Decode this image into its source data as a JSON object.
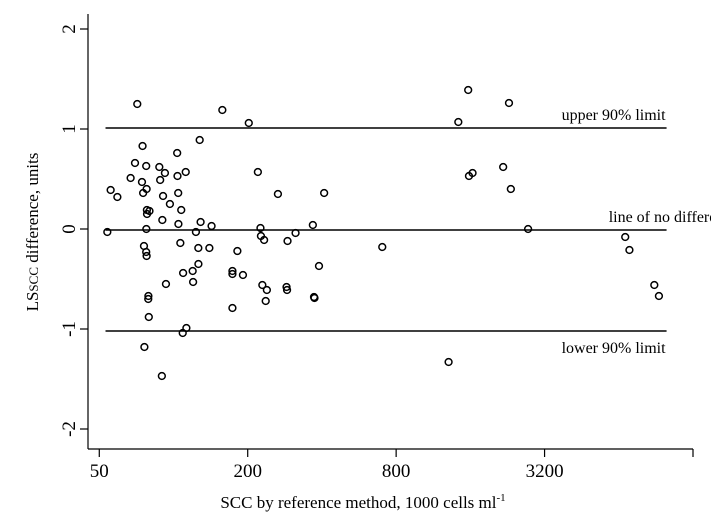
{
  "chart_data": {
    "type": "scatter",
    "title": "",
    "xlabel": "SCC by reference method, 1000 cells ml",
    "xlabel_superscript": "-1",
    "ylabel": "LS",
    "ylabel_subscript": "SCC",
    "ylabel_suffix": " difference, units",
    "x_scale": "log2",
    "xlim": [
      45,
      12800
    ],
    "ylim": [
      -2.2,
      2.15
    ],
    "x_ticks": [
      50,
      200,
      800,
      3200
    ],
    "x_ticklabels": [
      "50",
      "200",
      "800",
      "3200"
    ],
    "y_ticks": [
      -2,
      -1,
      0,
      1,
      2
    ],
    "y_ticklabels": [
      "-2",
      "-1",
      "0",
      "1",
      "2"
    ],
    "grid": false,
    "legend": "none",
    "reference_lines": [
      {
        "label": "upper 90% limit",
        "y": 1.01
      },
      {
        "label": "line of no difference",
        "y": -0.01
      },
      {
        "label": "lower 90% limit",
        "y": -1.02
      }
    ],
    "points": [
      [
        53.9,
        -0.03
      ],
      [
        55.6,
        0.39
      ],
      [
        59.2,
        0.32
      ],
      [
        67.0,
        0.51
      ],
      [
        69.8,
        0.66
      ],
      [
        71.3,
        1.25
      ],
      [
        74.5,
        0.47
      ],
      [
        74.9,
        0.83
      ],
      [
        75.3,
        0.36
      ],
      [
        75.9,
        -0.17
      ],
      [
        76.2,
        -1.18
      ],
      [
        77.5,
        0.63
      ],
      [
        77.8,
        0.4
      ],
      [
        78.0,
        0.19
      ],
      [
        78.1,
        0.15
      ],
      [
        77.6,
        0.0
      ],
      [
        77.5,
        -0.23
      ],
      [
        77.8,
        -0.27
      ],
      [
        79.0,
        -0.7
      ],
      [
        79.1,
        -0.67
      ],
      [
        79.4,
        -0.88
      ],
      [
        79.9,
        0.18
      ],
      [
        87.6,
        0.62
      ],
      [
        88.3,
        0.49
      ],
      [
        89.7,
        -1.47
      ],
      [
        90.1,
        0.09
      ],
      [
        90.7,
        0.33
      ],
      [
        92.3,
        0.56
      ],
      [
        93.2,
        -0.55
      ],
      [
        96.7,
        0.25
      ],
      [
        103.5,
        0.76
      ],
      [
        103.8,
        0.53
      ],
      [
        104.5,
        0.36
      ],
      [
        104.7,
        0.05
      ],
      [
        106.6,
        -0.14
      ],
      [
        107.5,
        0.19
      ],
      [
        109.4,
        -0.44
      ],
      [
        109.0,
        -1.04
      ],
      [
        112.1,
        0.57
      ],
      [
        112.8,
        -0.99
      ],
      [
        119.6,
        -0.42
      ],
      [
        120.1,
        -0.53
      ],
      [
        123.3,
        -0.03
      ],
      [
        126.1,
        -0.19
      ],
      [
        126.2,
        -0.35
      ],
      [
        127.7,
        0.89
      ],
      [
        128.8,
        0.07
      ],
      [
        139.8,
        -0.19
      ],
      [
        142.7,
        0.03
      ],
      [
        157.8,
        1.19
      ],
      [
        173.4,
        -0.45
      ],
      [
        173.4,
        -0.42
      ],
      [
        173.4,
        -0.79
      ],
      [
        181.6,
        -0.22
      ],
      [
        191.3,
        -0.46
      ],
      [
        202.0,
        1.06
      ],
      [
        219.9,
        0.57
      ],
      [
        225.3,
        0.01
      ],
      [
        226.3,
        -0.07
      ],
      [
        229.3,
        -0.56
      ],
      [
        233.1,
        -0.11
      ],
      [
        236.6,
        -0.72
      ],
      [
        239.2,
        -0.61
      ],
      [
        265.2,
        0.35
      ],
      [
        287.4,
        -0.58
      ],
      [
        288.8,
        -0.61
      ],
      [
        290.1,
        -0.12
      ],
      [
        312.7,
        -0.04
      ],
      [
        367.5,
        0.04
      ],
      [
        371.5,
        -0.68
      ],
      [
        373.1,
        -0.69
      ],
      [
        389.2,
        -0.37
      ],
      [
        408.4,
        0.36
      ],
      [
        702.8,
        -0.18
      ],
      [
        1305.7,
        -1.33
      ],
      [
        1429.9,
        1.07
      ],
      [
        1568.0,
        1.39
      ],
      [
        1579.4,
        0.53
      ],
      [
        1633.1,
        0.56
      ],
      [
        2173.7,
        0.62
      ],
      [
        2295.1,
        1.26
      ],
      [
        2335.3,
        0.4
      ],
      [
        2743.6,
        0.0
      ],
      [
        6796.9,
        -0.08
      ],
      [
        7068.6,
        -0.21
      ],
      [
        8918.3,
        -0.56
      ],
      [
        9311.2,
        -0.67
      ]
    ]
  }
}
